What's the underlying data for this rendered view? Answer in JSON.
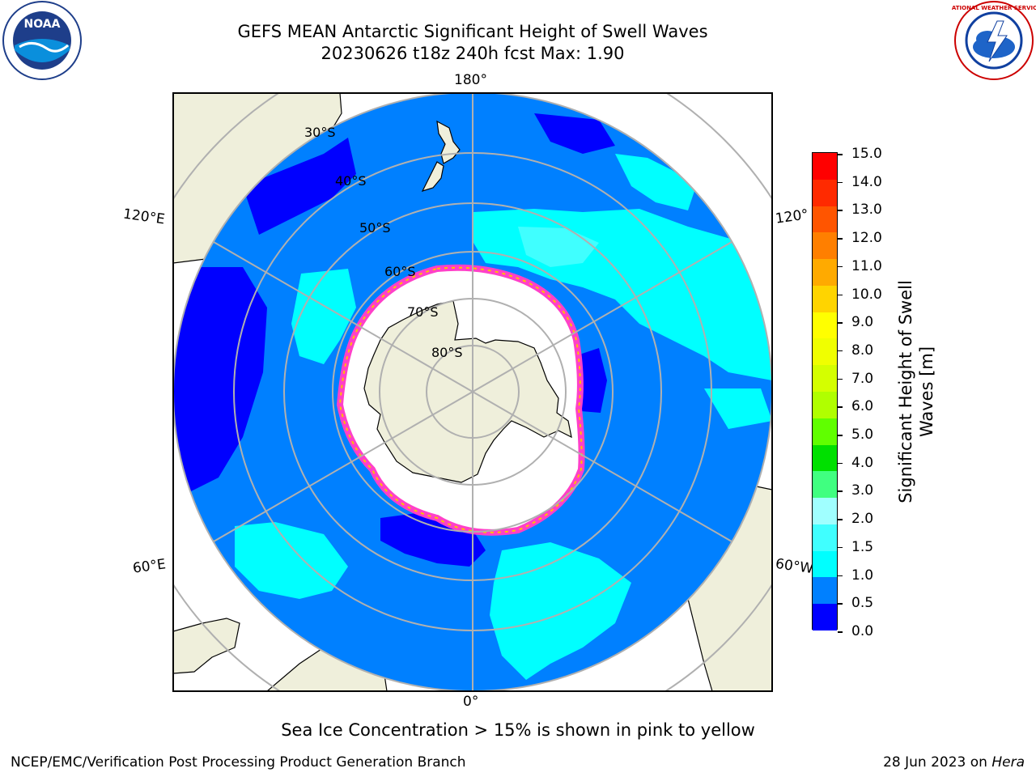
{
  "title": {
    "line1": "GEFS MEAN Antarctic Significant Height of Swell Waves",
    "line2": "20230626 t18z 240h fcst   Max: 1.90"
  },
  "map": {
    "lon_labels": {
      "top": "180°",
      "bottom": "0°",
      "left_upper": "120°E",
      "left_lower": "60°E",
      "right_upper": "120°",
      "right_lower": "60°W"
    },
    "lat_labels": [
      "30°S",
      "40°S",
      "50°S",
      "60°S",
      "70°S",
      "80°S"
    ],
    "colors": {
      "land": "#efefdb",
      "ocean_low": "#0000ff",
      "ocean_mid": "#0080ff",
      "ocean_cyan": "#00ffff",
      "ocean_light": "#40ffff",
      "ice_pink": "#ff40c8",
      "ice_yellow": "#ffc000",
      "grid": "#b0b0b0"
    }
  },
  "colorbar": {
    "title": "Significant Height of Swell Waves [m]",
    "title_line1": "Significant Height of Swell",
    "title_line2": "Waves [m]",
    "ticks": [
      "15.0",
      "14.0",
      "13.0",
      "12.0",
      "11.0",
      "10.0",
      "9.0",
      "8.0",
      "7.0",
      "6.0",
      "5.0",
      "4.0",
      "3.0",
      "2.0",
      "1.5",
      "1.0",
      "0.5",
      "0.0"
    ],
    "colors_top_to_bottom": [
      "#ff0000",
      "#ff2a00",
      "#ff5500",
      "#ff7f00",
      "#ffaa00",
      "#ffd400",
      "#ffff00",
      "#f0ff00",
      "#d4ff00",
      "#b0ff00",
      "#60ff00",
      "#00e000",
      "#40ff80",
      "#a0ffff",
      "#40ffff",
      "#00ffff",
      "#0080ff",
      "#0000ff"
    ]
  },
  "caption": "Sea Ice Concentration > 15% is shown in pink to yellow",
  "footer": {
    "left": "NCEP/EMC/Verification Post Processing Product Generation Branch",
    "right_prefix": "28 Jun 2023 on ",
    "right_italic": "Hera"
  },
  "logos": {
    "noaa_text": "NOAA",
    "nws_text": "NATIONAL WEATHER SERVICE"
  }
}
